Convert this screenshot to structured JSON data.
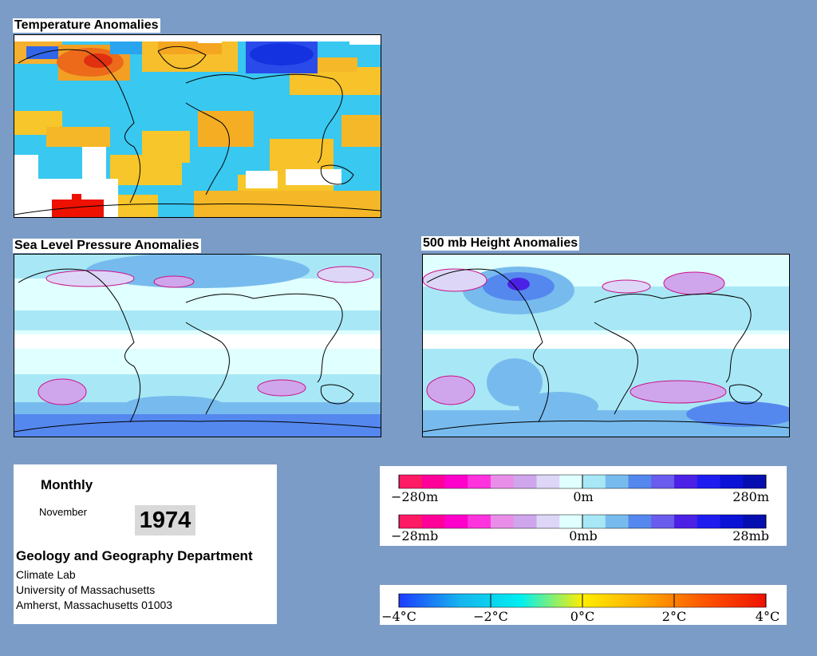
{
  "panels": {
    "temperature": {
      "title": "Temperature Anomalies"
    },
    "slp": {
      "title": "Sea Level Pressure Anomalies"
    },
    "height500": {
      "title": "500 mb Height Anomalies"
    }
  },
  "info": {
    "period": "Monthly",
    "month": "November",
    "year": "1974",
    "department": "Geology and Geography Department",
    "lab": "Climate Lab",
    "university": "University of Massachusetts",
    "address": "Amherst, Massachusetts 01003"
  },
  "legend_height": {
    "labels": [
      "−280m",
      "0m",
      "280m"
    ],
    "colors": [
      "#ff1a66",
      "#ff0099",
      "#ff00cc",
      "#ff33dd",
      "#e88ee8",
      "#cfa6ec",
      "#ddd6f7",
      "#e0ffff",
      "#a8e8f6",
      "#77bbee",
      "#5588ee",
      "#6a5cec",
      "#4b22e5",
      "#1f1cf0",
      "#0a12d5",
      "#050fb0"
    ]
  },
  "legend_pressure": {
    "labels": [
      "−28mb",
      "0mb",
      "28mb"
    ],
    "colors": [
      "#ff1a66",
      "#ff0099",
      "#ff00cc",
      "#ff33dd",
      "#e88ee8",
      "#cfa6ec",
      "#ddd6f7",
      "#e0ffff",
      "#a8e8f6",
      "#77bbee",
      "#5588ee",
      "#6a5cec",
      "#4b22e5",
      "#1f1cf0",
      "#0a12d5",
      "#050fb0"
    ]
  },
  "legend_temperature": {
    "labels": [
      "−4°C",
      "−2°C",
      "0°C",
      "2°C",
      "4°C"
    ],
    "gradient": [
      "#1e3cff",
      "#16b4ee",
      "#00f0f0",
      "#ffee00",
      "#ffaa00",
      "#ff5500",
      "#ee1100"
    ]
  }
}
